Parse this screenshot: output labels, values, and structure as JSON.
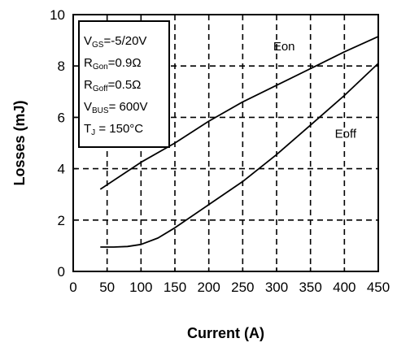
{
  "chart_data": {
    "type": "line",
    "title": "",
    "xlabel": "Current (A)",
    "ylabel": "Losses (mJ)",
    "xlim": [
      0,
      450
    ],
    "ylim": [
      0,
      10
    ],
    "x_ticks": [
      "0",
      "50",
      "100",
      "150",
      "200",
      "250",
      "300",
      "350",
      "400",
      "450"
    ],
    "y_ticks": [
      "0",
      "2",
      "4",
      "6",
      "8",
      "10"
    ],
    "grid": "dashed",
    "series": [
      {
        "name": "Eon",
        "x": [
          40,
          100,
          150,
          200,
          250,
          300,
          350,
          400,
          450
        ],
        "y": [
          3.2,
          4.25,
          5.0,
          5.85,
          6.6,
          7.25,
          7.9,
          8.55,
          9.15
        ]
      },
      {
        "name": "Eoff",
        "x": [
          40,
          60,
          80,
          100,
          125,
          150,
          200,
          250,
          300,
          350,
          400,
          450
        ],
        "y": [
          0.95,
          0.95,
          0.97,
          1.05,
          1.3,
          1.7,
          2.6,
          3.5,
          4.55,
          5.7,
          6.85,
          8.1
        ]
      }
    ],
    "conditions_box": {
      "lines": [
        {
          "main": "V",
          "sub": "GS",
          "rest": "=-5/20V"
        },
        {
          "main": "R",
          "sub": "Gon",
          "rest": "=0.9Ω"
        },
        {
          "main": "R",
          "sub": "Goff",
          "rest": "=0.5Ω"
        },
        {
          "main": "V",
          "sub": "BUS",
          "rest": "= 600V"
        },
        {
          "main": "T",
          "sub": "J",
          "rest": " = 150°C"
        }
      ]
    },
    "colors": {
      "line": "#000000",
      "grid": "#000000",
      "background": "#ffffff"
    }
  }
}
